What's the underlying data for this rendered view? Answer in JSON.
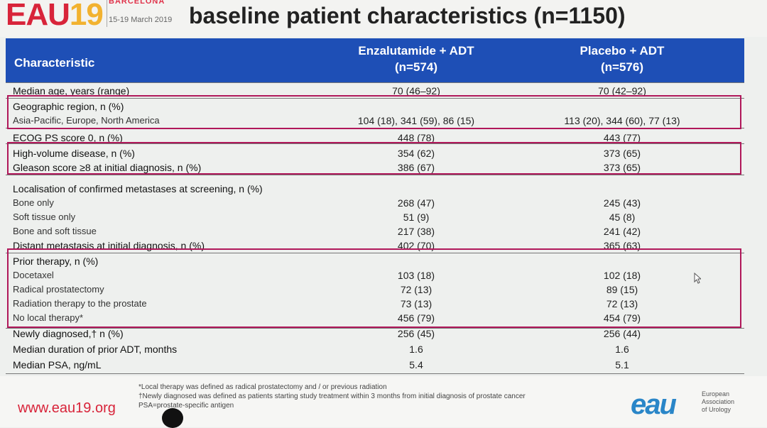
{
  "header": {
    "logo_eau": "EAU",
    "logo_year": "19",
    "city": "BARCELONA",
    "dates": "15-19 March 2019",
    "title": "baseline patient characteristics (n=1150)"
  },
  "table": {
    "col_char": "Characteristic",
    "col_enz": "Enzalutamide + ADT",
    "col_enz_n": "(n=574)",
    "col_pla": "Placebo + ADT",
    "col_pla_n": "(n=576)",
    "rows": [
      {
        "label": "Median age, years (range)",
        "enz": "70 (46–92)",
        "pla": "70 (42–92)"
      },
      {
        "label": "Geographic region, n (%)",
        "enz": "",
        "pla": ""
      },
      {
        "label": "Asia-Pacific, Europe, North America",
        "enz": "104 (18), 341 (59), 86 (15)",
        "pla": "113 (20), 344 (60), 77 (13)"
      },
      {
        "label": "ECOG PS score 0, n (%)",
        "enz": "448 (78)",
        "pla": "443 (77)"
      },
      {
        "label": "High-volume disease, n (%)",
        "enz": "354 (62)",
        "pla": "373 (65)"
      },
      {
        "label": "Gleason score ≥8 at initial diagnosis, n (%)",
        "enz": "386 (67)",
        "pla": "373 (65)"
      },
      {
        "label": "Localisation of confirmed metastases at screening, n (%)",
        "enz": "",
        "pla": ""
      },
      {
        "label": "Bone only",
        "enz": "268 (47)",
        "pla": "245 (43)"
      },
      {
        "label": "Soft tissue only",
        "enz": "51 (9)",
        "pla": "45 (8)"
      },
      {
        "label": "Bone and soft tissue",
        "enz": "217 (38)",
        "pla": "241 (42)"
      },
      {
        "label": "Distant metastasis at initial diagnosis, n (%)",
        "enz": "402 (70)",
        "pla": "365 (63)"
      },
      {
        "label": "Prior therapy, n (%)",
        "enz": "",
        "pla": ""
      },
      {
        "label": "Docetaxel",
        "enz": "103 (18)",
        "pla": "102 (18)"
      },
      {
        "label": "Radical prostatectomy",
        "enz": "72 (13)",
        "pla": "89 (15)"
      },
      {
        "label": "Radiation therapy to the prostate",
        "enz": "73 (13)",
        "pla": "72 (13)"
      },
      {
        "label": "No local therapy*",
        "enz": "456 (79)",
        "pla": "454 (79)"
      },
      {
        "label": "Newly diagnosed,† n (%)",
        "enz": "256 (45)",
        "pla": "256 (44)"
      },
      {
        "label": "Median duration of prior ADT, months",
        "enz": "1.6",
        "pla": "1.6"
      },
      {
        "label": "Median PSA, ng/mL",
        "enz": "5.4",
        "pla": "5.1"
      }
    ]
  },
  "footer": {
    "url": "www.eau19.org",
    "fn1": "*Local therapy was defined as radical prostatectomy and / or previous radiation",
    "fn2": "†Newly diagnosed was defined as patients starting study treatment within 3 months from initial diagnosis of prostate cancer",
    "fn3": "PSA=prostate-specific antigen",
    "logo": "eau",
    "assoc1": "European",
    "assoc2": "Association",
    "assoc3": "of Urology"
  },
  "colors": {
    "header_blue": "#1e4fb6",
    "highlight": "#b0185a",
    "brand_red": "#d8243a"
  }
}
